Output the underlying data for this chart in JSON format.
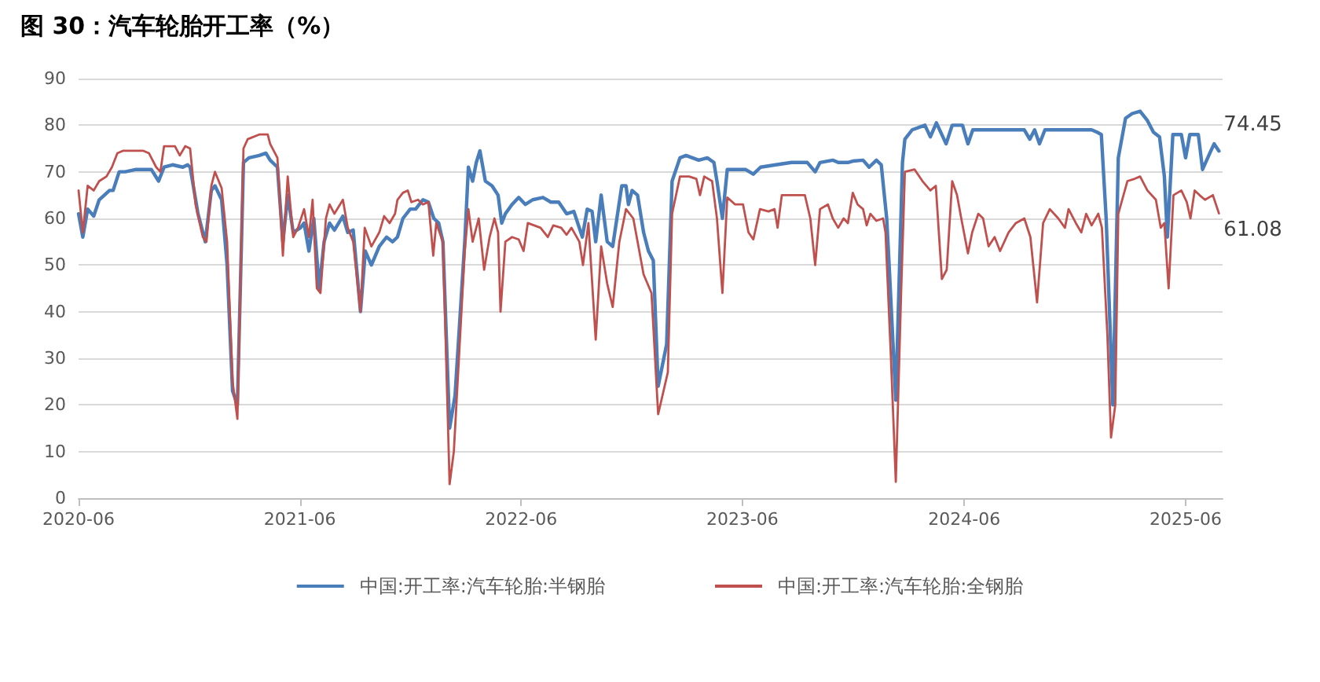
{
  "chart_data": {
    "type": "line",
    "title": "图 30：汽车轮胎开工率（%）",
    "xlim": [
      "2020-06-01",
      "2025-08-01"
    ],
    "xticks": [
      "2020-06",
      "2021-06",
      "2022-06",
      "2023-06",
      "2024-06",
      "2025-06"
    ],
    "ylim": [
      0,
      90
    ],
    "yticks": [
      0,
      10,
      20,
      30,
      40,
      50,
      60,
      70,
      80,
      90
    ],
    "grid": "y",
    "legend": "bottom",
    "marker": "none",
    "line_style": "solid",
    "annotations": [
      {
        "text": "74.45",
        "x": "2025-07-26",
        "y": 74.45
      },
      {
        "text": "61.08",
        "x": "2025-07-26",
        "y": 61.08
      }
    ],
    "series": [
      {
        "name": "中国:开工率:汽车轮胎:半钢胎",
        "color": "#4a7ebb",
        "x": [
          "2020-06-01",
          "2020-06-08",
          "2020-06-16",
          "2020-06-26",
          "2020-07-05",
          "2020-07-22",
          "2020-07-28",
          "2020-08-07",
          "2020-08-17",
          "2020-09-04",
          "2020-09-29",
          "2020-10-11",
          "2020-10-20",
          "2020-11-03",
          "2020-11-20",
          "2020-11-28",
          "2020-12-02",
          "2020-12-15",
          "2020-12-27",
          "2021-01-06",
          "2021-01-12",
          "2021-01-23",
          "2021-02-01",
          "2021-02-10",
          "2021-02-18",
          "2021-02-28",
          "2021-03-09",
          "2021-03-26",
          "2021-04-06",
          "2021-04-13",
          "2021-04-25",
          "2021-05-04",
          "2021-05-12",
          "2021-05-21",
          "2021-06-02",
          "2021-06-08",
          "2021-06-16",
          "2021-06-24",
          "2021-07-03",
          "2021-07-11",
          "2021-07-20",
          "2021-07-28",
          "2021-08-11",
          "2021-08-19",
          "2021-08-28",
          "2021-09-09",
          "2021-09-17",
          "2021-09-27",
          "2021-10-10",
          "2021-10-22",
          "2021-11-01",
          "2021-11-09",
          "2021-11-18",
          "2021-11-30",
          "2021-12-09",
          "2021-12-21",
          "2021-12-30",
          "2022-01-08",
          "2022-01-16",
          "2022-01-23",
          "2022-02-03",
          "2022-02-12",
          "2022-02-28",
          "2022-03-06",
          "2022-03-13",
          "2022-03-19",
          "2022-03-25",
          "2022-04-03",
          "2022-04-14",
          "2022-04-24",
          "2022-04-30",
          "2022-05-06",
          "2022-05-17",
          "2022-05-28",
          "2022-06-08",
          "2022-06-20",
          "2022-07-07",
          "2022-07-20",
          "2022-08-02",
          "2022-08-15",
          "2022-08-27",
          "2022-09-10",
          "2022-09-18",
          "2022-09-26",
          "2022-10-02",
          "2022-10-11",
          "2022-10-21",
          "2022-10-30",
          "2022-11-14",
          "2022-11-21",
          "2022-11-25",
          "2022-12-01",
          "2022-12-10",
          "2022-12-20",
          "2022-12-28",
          "2023-01-05",
          "2023-01-13",
          "2023-01-27",
          "2023-02-05",
          "2023-02-18",
          "2023-02-28",
          "2023-03-21",
          "2023-04-04",
          "2023-04-15",
          "2023-04-20",
          "2023-04-29",
          "2023-05-07",
          "2023-06-06",
          "2023-06-19",
          "2023-07-01",
          "2023-07-26",
          "2023-08-21",
          "2023-09-16",
          "2023-09-29",
          "2023-10-07",
          "2023-10-28",
          "2023-11-06",
          "2023-11-22",
          "2023-11-30",
          "2023-12-17",
          "2023-12-27",
          "2024-01-08",
          "2024-01-16",
          "2024-01-25",
          "2024-01-29",
          "2024-02-09",
          "2024-02-20",
          "2024-02-24",
          "2024-03-07",
          "2024-03-28",
          "2024-04-06",
          "2024-04-16",
          "2024-05-02",
          "2024-05-12",
          "2024-05-29",
          "2024-06-07",
          "2024-06-15",
          "2024-09-08",
          "2024-09-17",
          "2024-09-25",
          "2024-10-03",
          "2024-10-12",
          "2024-12-28",
          "2025-01-06",
          "2025-01-13",
          "2025-01-21",
          "2025-02-01",
          "2025-02-10",
          "2025-02-22",
          "2025-03-05",
          "2025-03-18",
          "2025-03-30",
          "2025-04-09",
          "2025-04-19",
          "2025-04-27",
          "2025-05-02",
          "2025-05-11",
          "2025-05-25",
          "2025-06-01",
          "2025-06-08",
          "2025-06-22",
          "2025-06-29",
          "2025-07-11",
          "2025-07-18",
          "2025-07-26"
        ],
        "values": [
          61,
          56,
          62,
          60.5,
          64,
          66,
          66,
          70,
          70,
          70.5,
          70.5,
          68,
          71,
          71.5,
          71,
          71.5,
          71,
          61,
          55,
          66,
          67,
          64,
          50,
          23,
          20,
          72,
          73,
          73.5,
          74,
          72.5,
          71,
          55,
          65,
          57,
          58,
          59,
          53,
          60,
          45,
          55,
          59,
          57.5,
          60.5,
          57,
          57.5,
          40,
          53,
          50,
          54,
          56,
          55,
          56,
          60,
          62,
          62,
          64,
          63.5,
          60,
          59,
          55,
          15,
          22,
          55,
          71,
          68,
          72,
          74.5,
          68,
          67,
          65,
          59,
          61,
          63,
          64.5,
          63,
          64,
          64.5,
          63.5,
          63.5,
          61,
          61.5,
          56,
          62,
          61.5,
          55,
          65,
          55,
          54,
          67,
          67,
          63,
          66,
          65,
          57,
          53,
          51,
          24,
          33,
          68,
          73,
          73.5,
          72.5,
          73,
          72,
          68,
          60,
          70.5,
          70.5,
          69.5,
          71,
          71.5,
          72,
          72,
          70,
          72,
          72.5,
          72,
          72,
          72.3,
          72.5,
          71,
          72.5,
          71.5,
          60,
          50,
          21,
          72,
          77,
          79,
          80,
          77.5,
          80.5,
          76,
          80,
          80,
          76,
          79,
          79,
          77,
          79,
          76,
          79,
          79,
          78.5,
          78,
          60,
          20,
          73,
          81.5,
          82.5,
          83,
          81,
          78.5,
          77.5,
          69,
          56,
          78,
          78,
          73,
          78,
          78,
          70.5,
          74,
          76,
          74.45
        ]
      },
      {
        "name": "中国:开工率:汽车轮胎:全钢胎",
        "color": "#c0504d",
        "x": [
          "2020-06-01",
          "2020-06-08",
          "2020-06-16",
          "2020-06-26",
          "2020-07-05",
          "2020-07-17",
          "2020-07-26",
          "2020-08-04",
          "2020-08-13",
          "2020-09-16",
          "2020-09-25",
          "2020-10-07",
          "2020-10-14",
          "2020-10-20",
          "2020-11-07",
          "2020-11-15",
          "2020-11-24",
          "2020-12-02",
          "2020-12-11",
          "2020-12-23",
          "2020-12-29",
          "2021-01-06",
          "2021-01-12",
          "2021-01-23",
          "2021-02-01",
          "2021-02-10",
          "2021-02-18",
          "2021-02-28",
          "2021-03-07",
          "2021-03-26",
          "2021-04-09",
          "2021-04-13",
          "2021-04-25",
          "2021-05-04",
          "2021-05-12",
          "2021-05-21",
          "2021-05-29",
          "2021-06-08",
          "2021-06-16",
          "2021-06-22",
          "2021-06-29",
          "2021-07-05",
          "2021-07-14",
          "2021-07-20",
          "2021-07-28",
          "2021-08-11",
          "2021-08-19",
          "2021-08-28",
          "2021-09-09",
          "2021-09-16",
          "2021-09-27",
          "2021-10-10",
          "2021-10-18",
          "2021-10-27",
          "2021-11-05",
          "2021-11-09",
          "2021-11-18",
          "2021-11-26",
          "2021-12-02",
          "2021-12-13",
          "2021-12-21",
          "2021-12-30",
          "2022-01-07",
          "2022-01-12",
          "2022-01-23",
          "2022-02-03",
          "2022-02-10",
          "2022-02-28",
          "2022-03-06",
          "2022-03-13",
          "2022-03-23",
          "2022-04-01",
          "2022-04-10",
          "2022-04-18",
          "2022-04-24",
          "2022-04-28",
          "2022-05-06",
          "2022-05-17",
          "2022-05-28",
          "2022-06-05",
          "2022-06-12",
          "2022-07-03",
          "2022-07-15",
          "2022-07-24",
          "2022-08-06",
          "2022-08-15",
          "2022-08-23",
          "2022-09-05",
          "2022-09-11",
          "2022-09-20",
          "2022-10-02",
          "2022-10-11",
          "2022-10-21",
          "2022-10-30",
          "2022-11-10",
          "2022-11-21",
          "2022-12-03",
          "2022-12-20",
          "2023-01-02",
          "2023-01-13",
          "2023-01-29",
          "2023-02-05",
          "2023-02-18",
          "2023-03-05",
          "2023-03-17",
          "2023-03-23",
          "2023-03-30",
          "2023-04-12",
          "2023-04-20",
          "2023-04-29",
          "2023-05-07",
          "2023-05-20",
          "2023-06-02",
          "2023-06-11",
          "2023-06-19",
          "2023-06-30",
          "2023-07-14",
          "2023-07-24",
          "2023-07-29",
          "2023-08-05",
          "2023-09-12",
          "2023-09-21",
          "2023-09-29",
          "2023-10-07",
          "2023-10-20",
          "2023-10-28",
          "2023-11-06",
          "2023-11-15",
          "2023-11-22",
          "2023-11-30",
          "2023-12-08",
          "2023-12-17",
          "2023-12-23",
          "2023-12-29",
          "2024-01-08",
          "2024-01-19",
          "2024-01-23",
          "2024-02-01",
          "2024-02-09",
          "2024-02-18",
          "2024-02-24",
          "2024-03-11",
          "2024-03-24",
          "2024-04-06",
          "2024-04-15",
          "2024-04-25",
          "2024-05-03",
          "2024-05-12",
          "2024-05-20",
          "2024-05-27",
          "2024-06-07",
          "2024-06-14",
          "2024-06-24",
          "2024-07-02",
          "2024-07-11",
          "2024-07-21",
          "2024-07-30",
          "2024-08-13",
          "2024-08-25",
          "2024-09-08",
          "2024-09-18",
          "2024-09-29",
          "2024-10-09",
          "2024-10-20",
          "2024-11-03",
          "2024-11-14",
          "2024-11-20",
          "2024-12-02",
          "2024-12-11",
          "2024-12-19",
          "2024-12-28",
          "2025-01-08",
          "2025-01-14",
          "2025-01-23",
          "2025-01-29",
          "2025-02-05",
          "2025-02-10",
          "2025-02-25",
          "2025-03-09",
          "2025-03-18",
          "2025-03-30",
          "2025-04-13",
          "2025-04-21",
          "2025-04-27",
          "2025-05-04",
          "2025-05-12",
          "2025-05-25",
          "2025-06-03",
          "2025-06-09",
          "2025-06-16",
          "2025-06-24",
          "2025-07-03",
          "2025-07-16",
          "2025-07-26"
        ],
        "values": [
          66,
          57,
          67,
          66,
          68,
          69,
          71,
          74,
          74.5,
          74.5,
          74,
          71,
          70,
          75.5,
          75.5,
          73.5,
          75.5,
          75,
          63,
          56,
          55,
          67,
          70,
          66.5,
          55,
          25,
          17,
          75,
          77,
          78,
          78,
          76,
          73,
          52,
          69,
          56,
          58,
          62,
          56,
          64,
          45,
          44,
          60,
          63,
          61,
          64,
          58,
          55,
          40,
          58,
          54,
          57,
          60.5,
          59,
          61,
          64,
          65.5,
          66,
          63.5,
          64,
          63,
          63.5,
          52,
          59,
          55,
          3,
          10,
          53,
          62,
          55,
          60,
          49,
          56,
          60,
          57,
          40,
          55,
          56,
          55.5,
          53,
          59,
          58,
          56,
          58.5,
          58,
          56.5,
          58,
          55,
          50,
          59,
          34,
          54,
          46,
          41,
          55,
          62,
          60,
          48,
          44,
          18,
          27,
          61,
          69,
          69,
          68.5,
          65,
          69,
          68,
          60,
          44,
          64.5,
          63,
          63,
          57,
          55.5,
          62,
          61.5,
          62,
          58,
          65,
          65,
          60,
          50,
          62,
          63,
          60,
          58,
          60,
          59,
          65.5,
          63,
          62,
          58.5,
          61,
          59.5,
          60,
          57,
          30,
          3.5,
          45,
          70,
          70.5,
          68,
          66,
          67,
          47,
          49,
          68,
          65,
          60,
          52.5,
          57,
          61,
          60,
          54,
          56,
          53,
          57,
          59,
          60,
          56,
          42,
          59,
          62,
          60,
          58,
          62,
          59,
          57,
          61,
          58.5,
          61,
          58,
          35,
          13,
          20,
          61,
          68,
          68.5,
          69,
          66,
          64,
          58,
          59,
          45,
          65,
          66,
          63.5,
          60,
          66,
          65,
          64,
          65,
          61.08
        ]
      }
    ]
  }
}
